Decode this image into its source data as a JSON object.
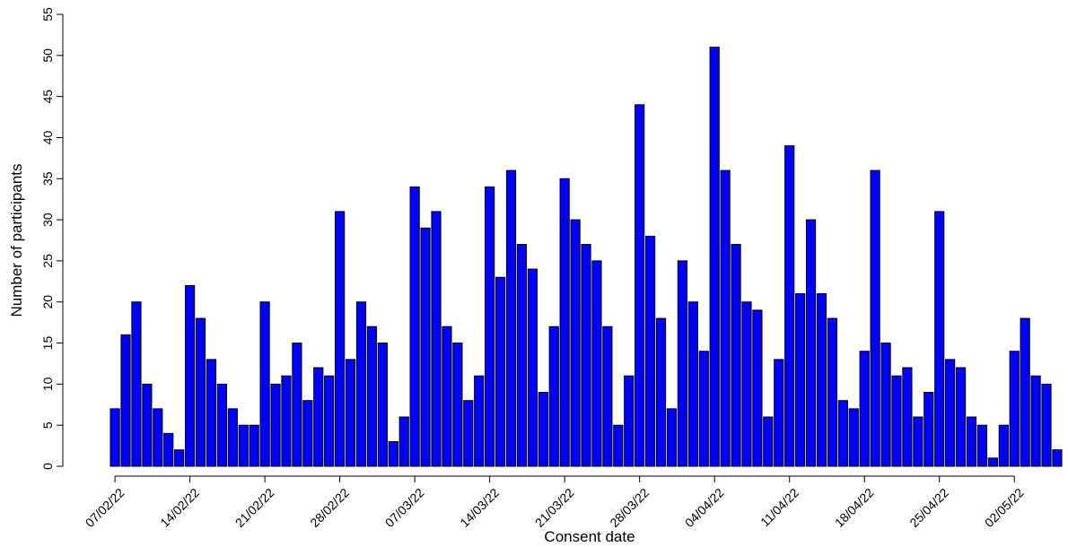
{
  "chart_data": {
    "type": "bar",
    "xlabel": "Consent date",
    "ylabel": "Number of participants",
    "ylim": [
      0,
      55
    ],
    "y_ticks": [
      0,
      5,
      10,
      15,
      20,
      25,
      30,
      35,
      40,
      45,
      50,
      55
    ],
    "x_tick_labels": [
      "07/02/22",
      "14/02/22",
      "21/02/22",
      "28/02/22",
      "07/03/22",
      "14/03/22",
      "21/03/22",
      "28/03/22",
      "04/04/22",
      "11/04/22",
      "18/04/22",
      "25/04/22",
      "02/05/22"
    ],
    "x_tick_positions": [
      0,
      7,
      14,
      21,
      28,
      35,
      42,
      49,
      56,
      63,
      70,
      77,
      84
    ],
    "values": [
      7,
      16,
      20,
      10,
      7,
      4,
      2,
      22,
      18,
      13,
      10,
      7,
      5,
      5,
      20,
      10,
      11,
      15,
      8,
      12,
      11,
      31,
      13,
      20,
      17,
      15,
      3,
      6,
      34,
      29,
      31,
      17,
      15,
      8,
      11,
      34,
      23,
      36,
      27,
      24,
      9,
      17,
      35,
      30,
      27,
      25,
      17,
      5,
      11,
      44,
      28,
      18,
      7,
      25,
      20,
      14,
      51,
      36,
      27,
      20,
      19,
      6,
      13,
      39,
      21,
      30,
      21,
      18,
      8,
      7,
      14,
      36,
      15,
      11,
      12,
      6,
      9,
      31,
      13,
      12,
      6,
      5,
      1,
      5,
      14,
      18,
      11,
      10,
      2
    ],
    "colors": {
      "bar_fill": "#0000ff",
      "bar_stroke": "#000000"
    },
    "grid": false,
    "legend": "none"
  }
}
